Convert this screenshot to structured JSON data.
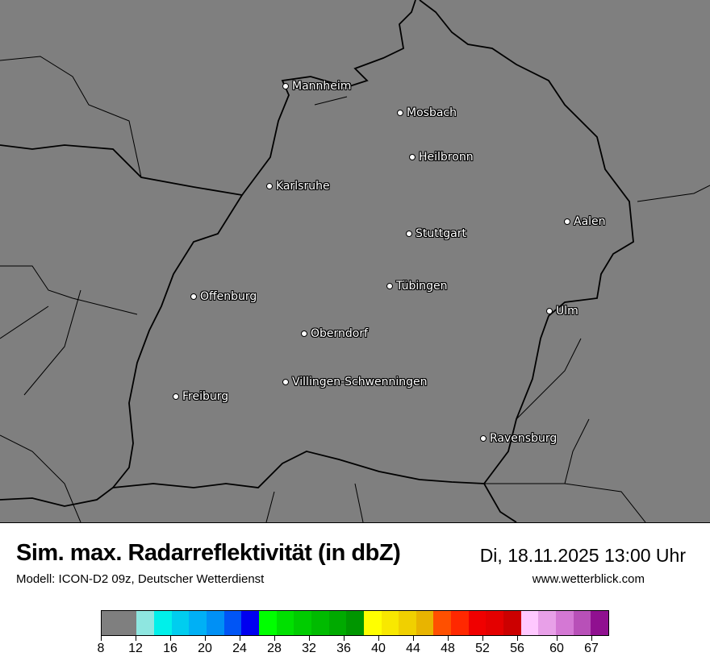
{
  "header": {
    "title": "Sim. max. Radarreflektivität (in dbZ)",
    "subtitle": "Modell: ICON-D2 09z, Deutscher Wetterdienst",
    "datetime": "Di, 18.11.2025 13:00 Uhr",
    "website": "www.wetterblick.com"
  },
  "map": {
    "background_color": "#7f7f7f",
    "cities": [
      {
        "name": "Mannheim"
      },
      {
        "name": "Mosbach"
      },
      {
        "name": "Heilbronn"
      },
      {
        "name": "Karlsruhe"
      },
      {
        "name": "Aalen"
      },
      {
        "name": "Stuttgart"
      },
      {
        "name": "Tübingen"
      },
      {
        "name": "Offenburg"
      },
      {
        "name": "Ulm"
      },
      {
        "name": "Oberndorf"
      },
      {
        "name": "Villingen-Schwenningen"
      },
      {
        "name": "Freiburg"
      },
      {
        "name": "Ravensburg"
      }
    ]
  },
  "colorbar": {
    "unit": "dbZ",
    "tick_labels": [
      "8",
      "12",
      "16",
      "20",
      "24",
      "28",
      "32",
      "36",
      "40",
      "44",
      "48",
      "52",
      "56",
      "60",
      "67"
    ],
    "colors": [
      "#7f7f7f",
      "#8ee6e0",
      "#00f0ea",
      "#00cdef",
      "#00b0f5",
      "#0090f5",
      "#0055f5",
      "#0000f0",
      "#00ff00",
      "#00e000",
      "#00cc00",
      "#00bb00",
      "#00aa00",
      "#009600",
      "#ffff00",
      "#f8e800",
      "#f0d000",
      "#e8b400",
      "#ff5000",
      "#ff2800",
      "#f00000",
      "#e40000",
      "#cc0000",
      "#ffc8ff",
      "#e8a0e8",
      "#d478d4",
      "#b850b8",
      "#901090"
    ]
  }
}
